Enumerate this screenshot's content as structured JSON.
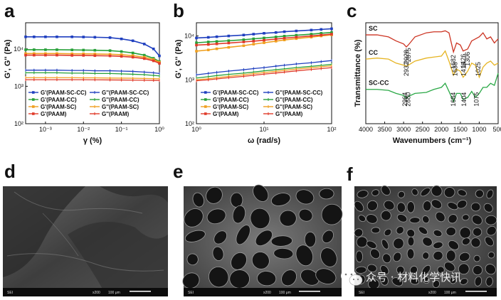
{
  "panel_labels": [
    "a",
    "b",
    "c",
    "d",
    "e",
    "f"
  ],
  "colors": {
    "sc_cc": "#1f3fbf",
    "cc": "#27a038",
    "sc": "#f0a020",
    "paam": "#e03a2a",
    "ftir_sc": "#cc3322",
    "ftir_cc": "#e6b422",
    "ftir_sccc": "#2aa846"
  },
  "sem_captions": [
    {
      "left": "SEI",
      "mid": "x200",
      "right": "100 μm"
    },
    {
      "left": "SEI",
      "mid": "x200",
      "right": "100 μm"
    },
    {
      "left": "SEI",
      "mid": "x200",
      "right": "100 μm"
    }
  ],
  "watermark": {
    "text": "众号 · 材料化学快讯",
    "icon": "wechat-icon"
  },
  "chart_data": [
    {
      "type": "line",
      "panel": "a",
      "xlabel": "γ (%)",
      "ylabel": "G', G'' (Pa)",
      "xscale": "log",
      "yscale": "log",
      "xlim": [
        0.0003,
        1
      ],
      "ylim": [
        100,
        50000
      ],
      "xtick_labels": [
        "10⁻³",
        "10⁻²",
        "10⁻¹",
        "10⁰"
      ],
      "ytick_labels": [
        "10²",
        "10³",
        "10⁴"
      ],
      "x": [
        0.0003,
        0.0005,
        0.001,
        0.002,
        0.005,
        0.01,
        0.02,
        0.05,
        0.1,
        0.2,
        0.4,
        0.7,
        1.0
      ],
      "series": [
        {
          "name": "G'(PAAM-SC-CC)",
          "color_key": "sc_cc",
          "kind": "G'",
          "values": [
            21000,
            21000,
            21000,
            21000,
            21000,
            20800,
            20500,
            20000,
            18500,
            16500,
            13500,
            10000,
            6500
          ]
        },
        {
          "name": "G''(PAAM-SC-CC)",
          "color_key": "sc_cc",
          "kind": "G''",
          "values": [
            2700,
            2700,
            2700,
            2700,
            2650,
            2650,
            2600,
            2600,
            2550,
            2500,
            2400,
            2300,
            2200
          ]
        },
        {
          "name": "G'(PAAM-CC)",
          "color_key": "cc",
          "kind": "G'",
          "values": [
            9500,
            9500,
            9500,
            9500,
            9400,
            9300,
            9200,
            9000,
            8500,
            7800,
            6800,
            5600,
            4600
          ]
        },
        {
          "name": "G''(PAAM-CC)",
          "color_key": "cc",
          "kind": "G''",
          "values": [
            2300,
            2300,
            2300,
            2300,
            2250,
            2250,
            2200,
            2200,
            2150,
            2100,
            2050,
            1950,
            1900
          ]
        },
        {
          "name": "G'(PAAM-SC)",
          "color_key": "sc",
          "kind": "G'",
          "values": [
            7500,
            7500,
            7500,
            7500,
            7400,
            7400,
            7300,
            7200,
            7000,
            6600,
            6000,
            5200,
            4400
          ]
        },
        {
          "name": "G''(PAAM-SC)",
          "color_key": "sc",
          "kind": "G''",
          "values": [
            1700,
            1700,
            1700,
            1700,
            1700,
            1680,
            1680,
            1660,
            1650,
            1640,
            1620,
            1600,
            1580
          ]
        },
        {
          "name": "G'(PAAM)",
          "color_key": "paam",
          "kind": "G'",
          "values": [
            6800,
            6800,
            6800,
            6800,
            6700,
            6700,
            6600,
            6500,
            6300,
            6000,
            5500,
            4800,
            4100
          ]
        },
        {
          "name": "G''(PAAM)",
          "color_key": "paam",
          "kind": "G''",
          "values": [
            1500,
            1500,
            1500,
            1500,
            1500,
            1500,
            1490,
            1480,
            1470,
            1460,
            1450,
            1440,
            1430
          ]
        }
      ]
    },
    {
      "type": "line",
      "panel": "b",
      "xlabel": "ω (rad/s)",
      "ylabel": "G', G'' (Pa)",
      "xscale": "log",
      "yscale": "log",
      "xlim": [
        1,
        100
      ],
      "ylim": [
        100,
        20000
      ],
      "xtick_labels": [
        "10⁰",
        "10¹",
        "10²"
      ],
      "ytick_labels": [
        "10²",
        "10³",
        "10⁴"
      ],
      "x": [
        1,
        1.5,
        2,
        3,
        5,
        7,
        10,
        15,
        20,
        30,
        50,
        70,
        100
      ],
      "series": [
        {
          "name": "G'(PAAM-SC-CC)",
          "color_key": "sc_cc",
          "kind": "G'",
          "values": [
            9000,
            9300,
            9600,
            10000,
            10500,
            11000,
            11500,
            12000,
            12500,
            13000,
            13600,
            14100,
            14600
          ]
        },
        {
          "name": "G''(PAAM-SC-CC)",
          "color_key": "sc_cc",
          "kind": "G''",
          "values": [
            1300,
            1400,
            1480,
            1580,
            1700,
            1800,
            1900,
            2050,
            2150,
            2300,
            2450,
            2600,
            2750
          ]
        },
        {
          "name": "G'(PAAM-CC)",
          "color_key": "cc",
          "kind": "G'",
          "values": [
            7000,
            7300,
            7500,
            7800,
            8200,
            8600,
            9000,
            9500,
            9900,
            10400,
            11000,
            11500,
            12000
          ]
        },
        {
          "name": "G''(PAAM-CC)",
          "color_key": "cc",
          "kind": "G''",
          "values": [
            1100,
            1180,
            1250,
            1330,
            1420,
            1500,
            1600,
            1700,
            1780,
            1900,
            2030,
            2130,
            2250
          ]
        },
        {
          "name": "G'(PAAM-SC)",
          "color_key": "sc",
          "kind": "G'",
          "values": [
            4500,
            4800,
            5100,
            5500,
            6000,
            6500,
            7000,
            7600,
            8100,
            8700,
            9400,
            10000,
            10600
          ]
        },
        {
          "name": "G''(PAAM-SC)",
          "color_key": "sc",
          "kind": "G''",
          "values": [
            1000,
            1060,
            1120,
            1200,
            1300,
            1380,
            1460,
            1560,
            1640,
            1750,
            1880,
            1980,
            2080
          ]
        },
        {
          "name": "G'(PAAM)",
          "color_key": "paam",
          "kind": "G'",
          "values": [
            6200,
            6400,
            6600,
            6900,
            7300,
            7600,
            8000,
            8500,
            8900,
            9400,
            10000,
            10500,
            11000
          ]
        },
        {
          "name": "G''(PAAM)",
          "color_key": "paam",
          "kind": "G''",
          "values": [
            950,
            1000,
            1050,
            1120,
            1200,
            1270,
            1350,
            1430,
            1500,
            1600,
            1720,
            1800,
            1900
          ]
        }
      ]
    },
    {
      "type": "line",
      "panel": "c",
      "xlabel": "Wavenumbers (cm⁻¹)",
      "ylabel": "Transmittance (%)",
      "xlim": [
        4000,
        500
      ],
      "xtick_labels": [
        "4000",
        "3500",
        "3000",
        "2500",
        "2000",
        "1500",
        "1000",
        "500"
      ],
      "xticks": [
        4000,
        3500,
        3000,
        2500,
        2000,
        1500,
        1000,
        500
      ],
      "ylim": [
        0,
        100
      ],
      "x": [
        4000,
        3700,
        3400,
        3200,
        3000,
        2928,
        2875,
        2700,
        2400,
        2200,
        2000,
        1900,
        1800,
        1682,
        1600,
        1500,
        1426,
        1306,
        1200,
        1100,
        1000,
        900,
        800,
        700,
        600,
        500
      ],
      "series": [
        {
          "name": "SC",
          "color_key": "ftir_sc",
          "values": [
            88,
            88,
            86,
            82,
            79,
            76,
            78,
            86,
            90,
            91,
            91,
            92,
            90,
            71,
            80,
            78,
            72,
            74,
            82,
            84,
            86,
            90,
            84,
            86,
            80,
            84
          ]
        },
        {
          "name": "CC",
          "color_key": "ftir_cc",
          "values": [
            64,
            65,
            64,
            60,
            58,
            57,
            58,
            62,
            65,
            66,
            67,
            72,
            62,
            48,
            54,
            52,
            46,
            52,
            60,
            58,
            46,
            56,
            60,
            62,
            58,
            60
          ]
        },
        {
          "name": "SC-CC",
          "color_key": "ftir_sccc",
          "values": [
            34,
            34,
            33,
            30,
            28,
            25,
            27,
            30,
            31,
            34,
            36,
            40,
            32,
            22,
            30,
            30,
            24,
            26,
            32,
            26,
            30,
            36,
            36,
            40,
            38,
            50
          ]
        }
      ],
      "annotations": [
        {
          "series": "SC",
          "labels": [
            "2928",
            "2875",
            "1682",
            "1426",
            "1306"
          ],
          "x": [
            2928,
            2875,
            1682,
            1426,
            1306
          ]
        },
        {
          "series": "CC",
          "labels": [
            "2932",
            "1638",
            "1416",
            "1025"
          ],
          "x": [
            2932,
            1638,
            1416,
            1025
          ]
        },
        {
          "series": "SC-CC",
          "labels": [
            "2964",
            "2880",
            "1684",
            "1404",
            "1075"
          ],
          "x": [
            2964,
            2880,
            1684,
            1404,
            1075
          ]
        }
      ]
    }
  ]
}
